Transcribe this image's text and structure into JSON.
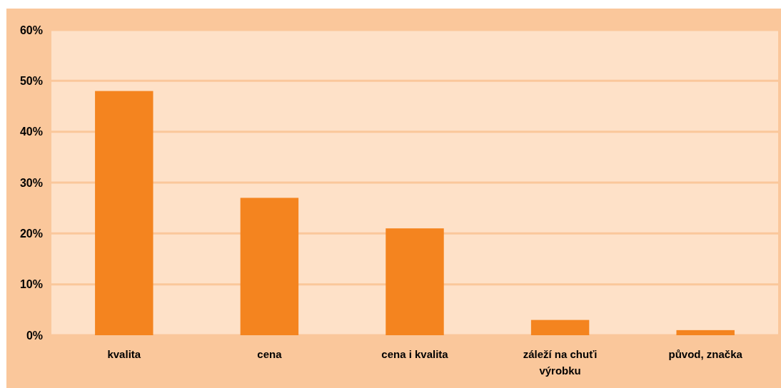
{
  "chart_data": {
    "type": "bar",
    "categories": [
      "kvalita",
      "cena",
      "cena i kvalita",
      "záleží na chuťi výrobku",
      "původ, značka"
    ],
    "values": [
      48,
      27,
      21,
      3,
      1
    ],
    "color": "#f4841f",
    "ylim": [
      0,
      60
    ],
    "yticks": [
      {
        "value": 0,
        "label": "0%"
      },
      {
        "value": 10,
        "label": "10%"
      },
      {
        "value": 20,
        "label": "20%"
      },
      {
        "value": 30,
        "label": "30%"
      },
      {
        "value": 40,
        "label": "40%"
      },
      {
        "value": 50,
        "label": "50%"
      },
      {
        "value": 60,
        "label": "60%"
      }
    ],
    "grid": "y"
  }
}
